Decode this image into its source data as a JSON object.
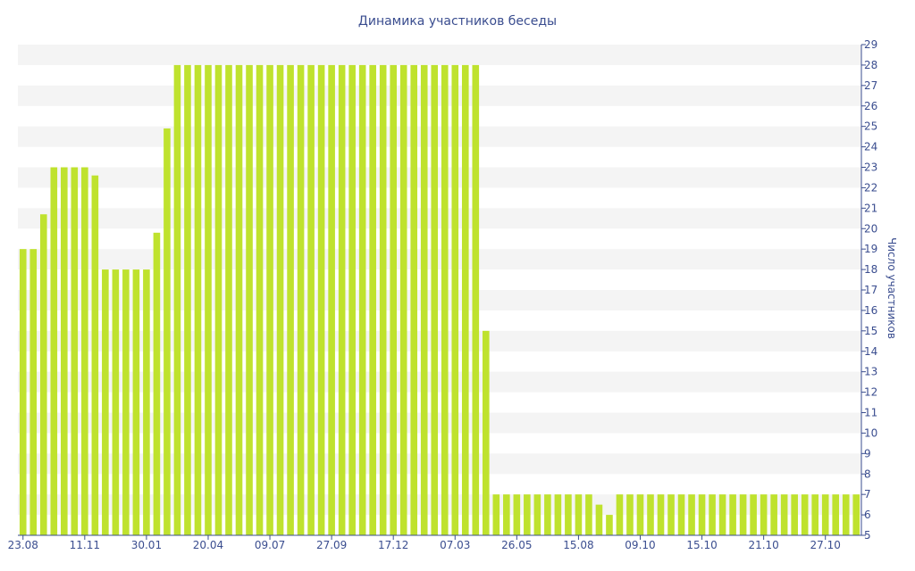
{
  "chart_data": {
    "type": "bar",
    "title": "Динамика участников беседы",
    "xlabel": "",
    "ylabel": "Число участников",
    "ylim": [
      5,
      29
    ],
    "y_ticks": [
      5,
      6,
      7,
      8,
      9,
      10,
      11,
      12,
      13,
      14,
      15,
      16,
      17,
      18,
      19,
      20,
      21,
      22,
      23,
      24,
      25,
      26,
      27,
      28,
      29
    ],
    "x_tick_labels": [
      "23.08",
      "11.11",
      "30.01",
      "20.04",
      "09.07",
      "27.09",
      "17.12",
      "07.03",
      "26.05",
      "15.08",
      "09.10",
      "15.10",
      "21.10",
      "27.10"
    ],
    "grid": "horizontal-bands",
    "bar_color": "#bfe22e",
    "band_color": "#f4f4f4",
    "text_color": "#3a4d8f",
    "values": [
      19,
      19,
      20.7,
      23,
      23,
      23,
      23,
      22.6,
      18,
      18,
      18,
      18,
      18,
      19.8,
      24.9,
      28,
      28,
      28,
      28,
      28,
      28,
      28,
      28,
      28,
      28,
      28,
      28,
      28,
      28,
      28,
      28,
      28,
      28,
      28,
      28,
      28,
      28,
      28,
      28,
      28,
      28,
      28,
      28,
      28,
      28,
      15,
      7,
      7,
      7,
      7,
      7,
      7,
      7,
      7,
      7,
      7,
      6.5,
      6,
      7,
      7,
      7,
      7,
      7,
      7,
      7,
      7,
      7,
      7,
      7,
      7,
      7,
      7,
      7,
      7,
      7,
      7,
      7,
      7,
      7,
      7,
      7,
      7
    ]
  }
}
